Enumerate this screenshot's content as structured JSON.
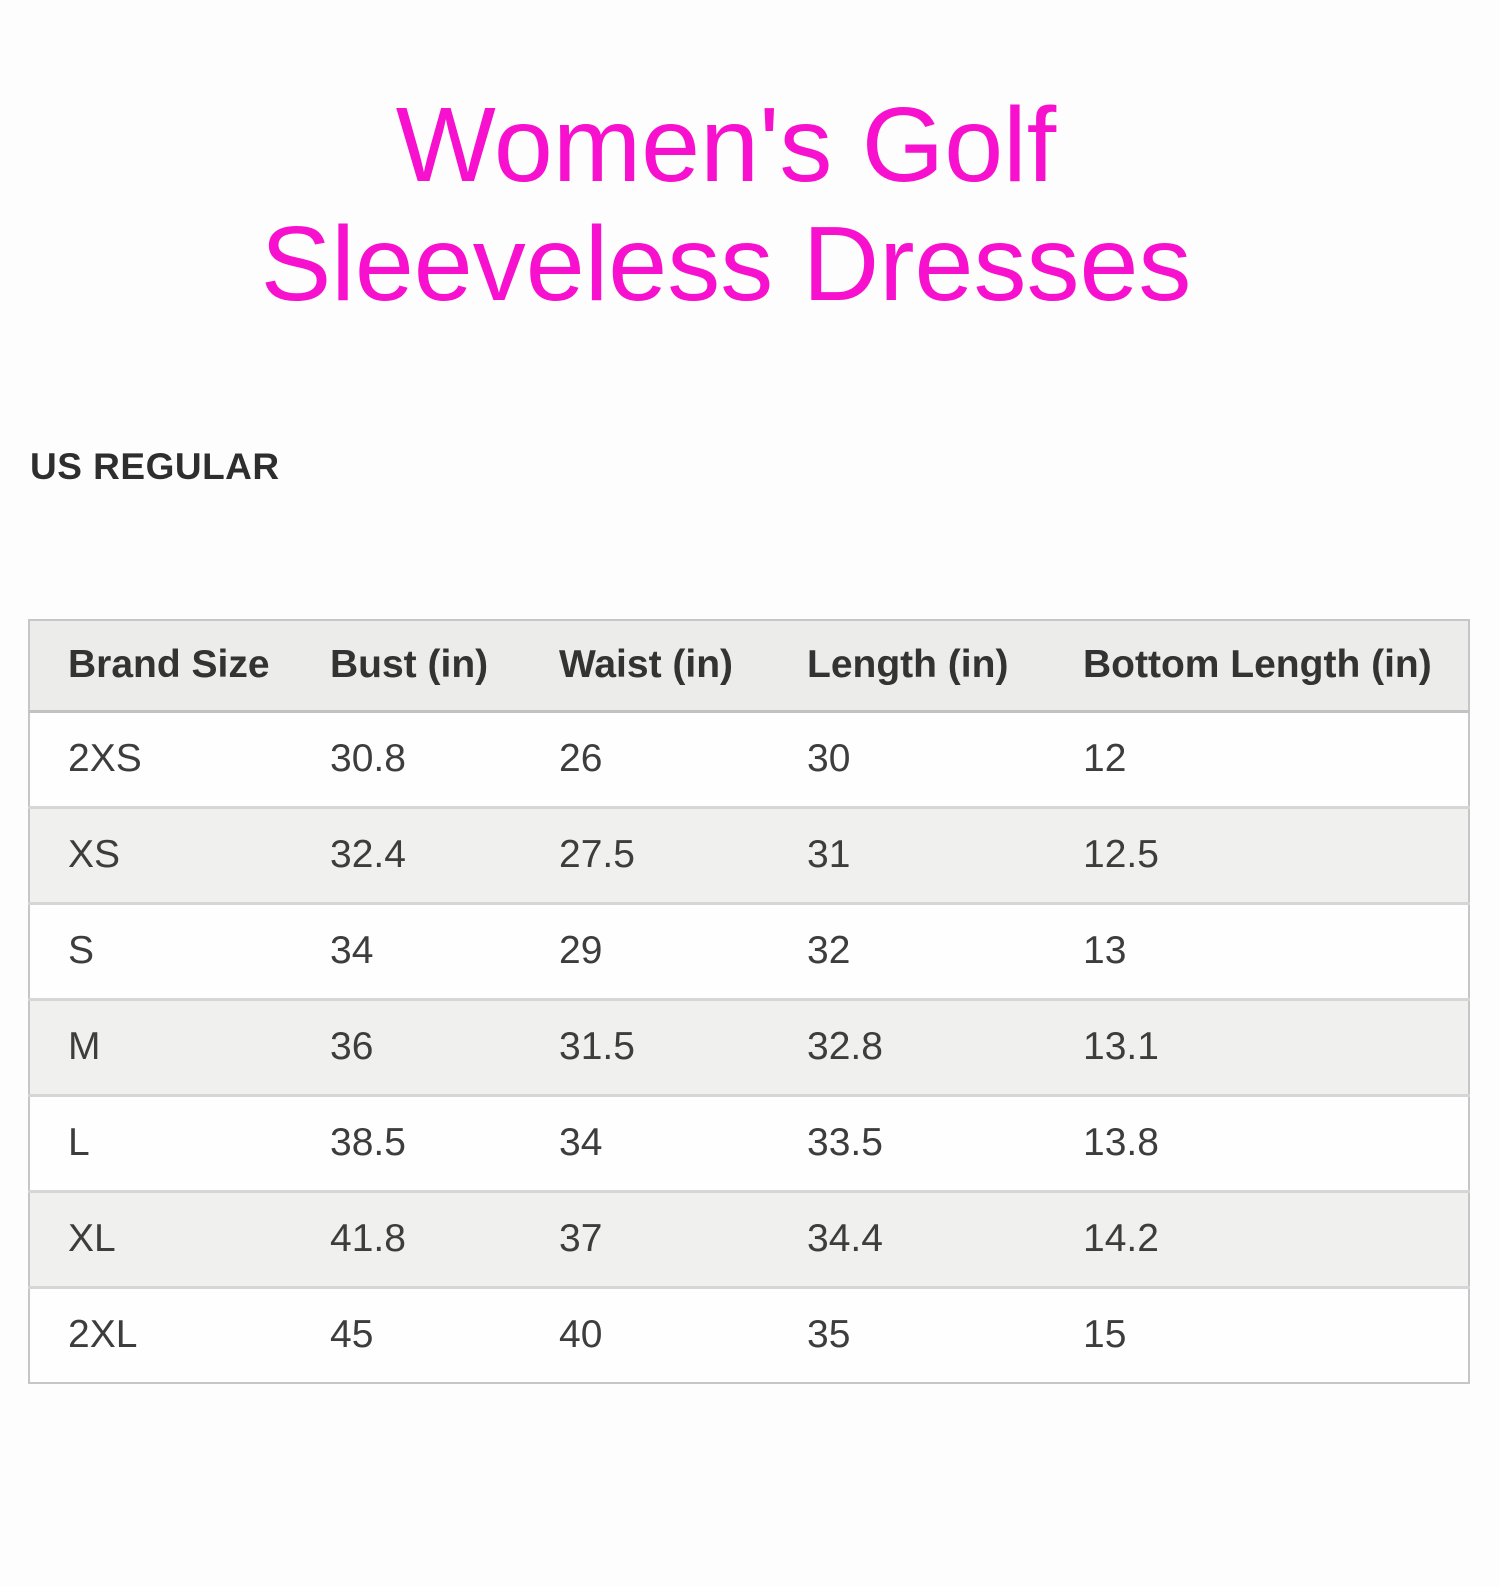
{
  "title": {
    "line1": "Women's Golf",
    "line2": "Sleeveless Dresses"
  },
  "section_label": "US REGULAR",
  "theme": {
    "accent": "#f711ce",
    "header_bg": "#ececea",
    "stripe_bg": "#f0f0ee",
    "border": "#c6c6c6",
    "text": "#3d3d3d"
  },
  "chart_data": {
    "type": "table",
    "title": "Women's Golf Sleeveless Dresses",
    "section": "US REGULAR",
    "columns": [
      "Brand Size",
      "Bust (in)",
      "Waist (in)",
      "Length (in)",
      "Bottom Length (in)"
    ],
    "rows": [
      [
        "2XS",
        "30.8",
        "26",
        "30",
        "12"
      ],
      [
        "XS",
        "32.4",
        "27.5",
        "31",
        "12.5"
      ],
      [
        "S",
        "34",
        "29",
        "32",
        "13"
      ],
      [
        "M",
        "36",
        "31.5",
        "32.8",
        "13.1"
      ],
      [
        "L",
        "38.5",
        "34",
        "33.5",
        "13.8"
      ],
      [
        "XL",
        "41.8",
        "37",
        "34.4",
        "14.2"
      ],
      [
        "2XL",
        "45",
        "40",
        "35",
        "15"
      ]
    ]
  }
}
